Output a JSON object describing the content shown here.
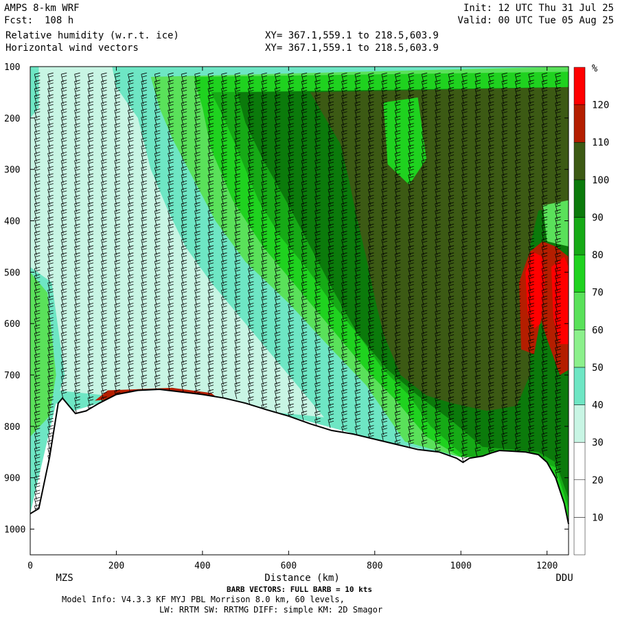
{
  "header": {
    "model": "AMPS 8-km WRF",
    "forecast": "Fcst:  108 h",
    "field1": "Relative humidity (w.r.t. ice)",
    "field2": "Horizontal wind vectors",
    "xy1": "XY= 367.1,559.1 to 218.5,603.9",
    "xy2": "XY= 367.1,559.1 to 218.5,603.9",
    "init": "Init: 12 UTC Thu 31 Jul 25",
    "valid": "Valid: 00 UTC Tue 05 Aug 25"
  },
  "chart_data": {
    "type": "heatmap",
    "xlabel": "Distance (km)",
    "ylabel": "",
    "xlim": [
      0,
      1250
    ],
    "ylim": [
      1050,
      100
    ],
    "x_ticks": [
      0,
      200,
      400,
      600,
      800,
      1000,
      1200
    ],
    "y_ticks": [
      100,
      200,
      300,
      400,
      500,
      600,
      700,
      800,
      900,
      1000
    ],
    "endpoint_labels": {
      "left": "MZS",
      "right": "DDU"
    },
    "colorbar": {
      "unit": "%",
      "levels": [
        10,
        20,
        30,
        40,
        50,
        60,
        70,
        80,
        90,
        100,
        110,
        120
      ],
      "colors": [
        "#ffffff",
        "#ffffff",
        "#ffffff",
        "#c8f5e4",
        "#6ee6c4",
        "#8cf08c",
        "#5ae15a",
        "#1fd21f",
        "#16aa16",
        "#0b7a0b",
        "#3c5a14",
        "#b41e00",
        "#ff0000"
      ]
    },
    "terrain_surface_hpa": {
      "x": [
        0,
        20,
        45,
        65,
        75,
        90,
        105,
        130,
        160,
        200,
        250,
        300,
        350,
        400,
        450,
        500,
        550,
        600,
        650,
        700,
        750,
        800,
        850,
        900,
        950,
        990,
        1005,
        1020,
        1050,
        1070,
        1090,
        1110,
        1150,
        1180,
        1200,
        1220,
        1240,
        1250
      ],
      "pressure": [
        970,
        960,
        860,
        755,
        745,
        760,
        775,
        770,
        755,
        738,
        730,
        728,
        733,
        738,
        745,
        755,
        768,
        780,
        795,
        808,
        815,
        825,
        835,
        845,
        850,
        862,
        870,
        862,
        858,
        852,
        847,
        848,
        850,
        855,
        870,
        900,
        950,
        990
      ]
    },
    "notes": {
      "barb_caption": "BARB VECTORS:  FULL BARB = 10 kts",
      "model_info": "Model Info: V4.3.3   KF     MYJ PBL  Morrison          8.0 km,  60 levels,",
      "physics": "LW: RRTM SW: RRTMG   DIFF: simple KM: 2D Smagor"
    }
  }
}
